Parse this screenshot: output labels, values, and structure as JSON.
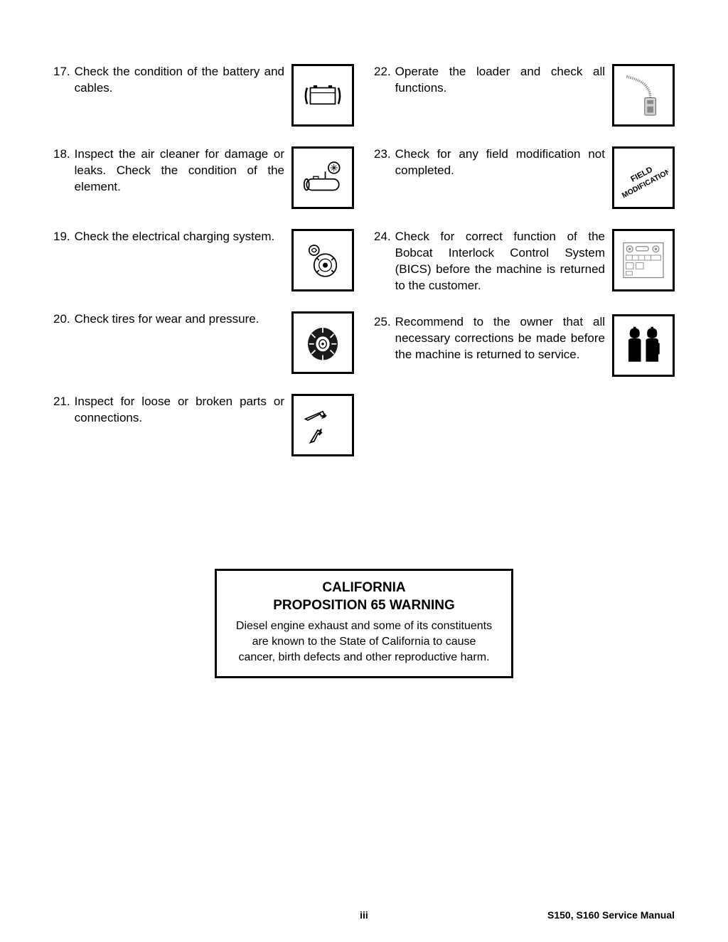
{
  "left_items": [
    {
      "num": "17.",
      "text": "Check the condition of the battery and cables.",
      "icon": "battery"
    },
    {
      "num": "18.",
      "text": "Inspect the air cleaner for damage or leaks. Check the condition of the element.",
      "icon": "aircleaner"
    },
    {
      "num": "19.",
      "text": "Check the electrical charging system.",
      "icon": "alternator"
    },
    {
      "num": "20.",
      "text": "Check tires for wear and pressure.",
      "icon": "tire"
    },
    {
      "num": "21.",
      "text": "Inspect for loose or broken parts or connections.",
      "icon": "broken"
    }
  ],
  "right_items": [
    {
      "num": "22.",
      "text": "Operate the loader and check all functions.",
      "icon": "joystick"
    },
    {
      "num": "23.",
      "text": "Check for any field modification not completed.",
      "icon": "fieldmod"
    },
    {
      "num": "24.",
      "text": "Check for correct function of the Bobcat Interlock Control System (BICS) before the machine is returned to the customer.",
      "icon": "panel"
    },
    {
      "num": "25.",
      "text": "Recommend to the owner that all necessary corrections be made before the machine is returned to service.",
      "icon": "people"
    }
  ],
  "warning": {
    "title1": "CALIFORNIA",
    "title2": "PROPOSITION 65 WARNING",
    "body": "Diesel engine exhaust and some of its constituents are known to the State of California to cause cancer, birth defects and other reproductive harm."
  },
  "footer": {
    "page": "iii",
    "manual": "S150, S160 Service Manual"
  },
  "icon_svgs": {
    "battery": "<svg viewBox='0 0 80 80' width='70' height='70'><rect x='20' y='28' width='40' height='26' fill='none' stroke='#000' stroke-width='2'/><rect x='25' y='24' width='6' height='4' fill='#000'/><rect x='49' y='24' width='6' height='4' fill='#000'/><line x1='20' y1='36' x2='60' y2='36' stroke='#000' stroke-width='1.5'/><path d='M15 28 Q10 40 15 54' fill='none' stroke='#000' stroke-width='3'/><path d='M65 28 Q70 40 65 54' fill='none' stroke='#000' stroke-width='3'/></svg>",
    "aircleaner": "<svg viewBox='0 0 80 80' width='70' height='70'><ellipse cx='58' cy='24' rx='9' ry='9' fill='none' stroke='#000' stroke-width='2'/><path d='M58 18 L58 30 M52 24 L64 24 M54 20 L62 28 M62 20 L54 28' stroke='#000' stroke-width='1'/><rect x='14' y='42' width='52' height='18' rx='9' fill='none' stroke='#000' stroke-width='2'/><ellipse cx='14' cy='51' rx='4' ry='9' fill='none' stroke='#000' stroke-width='2'/><rect x='25' y='38' width='8' height='4' fill='none' stroke='#000' stroke-width='1.5'/><line x1='44' y1='30' x2='44' y2='42' stroke='#000' stroke-width='2'/></svg>",
    "alternator": "<svg viewBox='0 0 80 80' width='70' height='70'><circle cx='26' cy='24' r='8' fill='none' stroke='#000' stroke-width='2'/><path d='M22 24 Q26 18 30 24 Q26 30 22 24' fill='none' stroke='#000' stroke-width='1.5'/><circle cx='44' cy='48' r='18' fill='none' stroke='#000' stroke-width='2'/><circle cx='44' cy='48' r='10' fill='none' stroke='#000' stroke-width='1.5'/><circle cx='44' cy='48' r='4' fill='#000'/><path d='M30 36 L34 40 M58 36 L54 40 M30 60 L34 56 M58 60 L54 56' stroke='#000' stroke-width='2'/></svg>",
    "tire": "<svg viewBox='0 0 80 80' width='70' height='70'><ellipse cx='40' cy='42' rx='24' ry='26' fill='#1a1a1a'/><ellipse cx='40' cy='42' rx='11' ry='12' fill='#fff'/><ellipse cx='40' cy='42' rx='6' ry='7' fill='none' stroke='#000' stroke-width='1.5'/><circle cx='40' cy='42' r='2' fill='#000'/><g stroke='#fff' stroke-width='2' fill='none'><path d='M22 26 L28 32'/><path d='M58 26 L52 32'/><path d='M18 42 L26 42'/><path d='M62 42 L54 42'/><path d='M22 58 L28 52'/><path d='M58 58 L52 52'/><path d='M40 16 L40 24'/><path d='M40 68 L40 60'/></g></svg>",
    "broken": "<svg viewBox='0 0 80 80' width='70' height='70'><path d='M12 30 L40 18 L44 26 L40 28 L42 24 L38 26 L36 22 L16 32 Z' fill='none' stroke='#000' stroke-width='2'/><path d='M40 26 L44 22 L42 28 L46 24' fill='none' stroke='#000' stroke-width='1.5'/><path d='M20 68 L32 48 L38 52 L34 56 L36 52 L32 54 L26 66 Z' fill='none' stroke='#000' stroke-width='2'/><path d='M34 50 L38 46 L36 52' fill='none' stroke='#000' stroke-width='1.5'/></svg>",
    "joystick": "<svg viewBox='0 0 80 80' width='70' height='70'><rect x='42' y='44' width='18' height='28' rx='2' fill='#d0d0d0' stroke='#555' stroke-width='1'/><rect x='46' y='48' width='10' height='6' fill='#888'/><rect x='46' y='58' width='10' height='10' fill='#888'/><path d='M51 44 Q51 20 20 12 Q14 10 12 10' fill='none' stroke='#888' stroke-width='4' stroke-dasharray='1.5 1.5'/></svg>",
    "fieldmod": "<svg viewBox='0 0 80 80' width='70' height='70'><text x='40' y='38' font-size='13' font-weight='bold' text-anchor='middle' transform='rotate(-28 40 40)' fill='#000'>FIELD</text><text x='40' y='54' font-size='12' font-weight='bold' text-anchor='middle' transform='rotate(-28 40 40)' fill='#000'>MODIFICATION</text></svg>",
    "panel": "<svg viewBox='0 0 80 80' width='70' height='70'><rect x='8' y='12' width='64' height='56' fill='none' stroke='#888' stroke-width='1.5'/><circle cx='18' cy='22' r='5' fill='none' stroke='#888' stroke-width='1.5'/><circle cx='18' cy='22' r='2' fill='#888'/><rect x='28' y='18' width='20' height='7' rx='3' fill='none' stroke='#888' stroke-width='1.5'/><circle cx='60' cy='22' r='5' fill='none' stroke='#888' stroke-width='1.5'/><circle cx='60' cy='22' r='2' fill='#888'/><rect x='12' y='32' width='56' height='8' fill='none' stroke='#888' stroke-width='1'/><line x1='22' y1='32' x2='22' y2='40' stroke='#888'/><line x1='32' y1='32' x2='32' y2='40' stroke='#888'/><line x1='42' y1='32' x2='42' y2='40' stroke='#888'/><line x1='52' y1='32' x2='52' y2='40' stroke='#888'/><rect x='12' y='44' width='12' height='10' fill='none' stroke='#888' stroke-width='1'/><rect x='28' y='44' width='12' height='10' fill='none' stroke='#888' stroke-width='1'/><rect x='12' y='58' width='10' height='6' fill='none' stroke='#888' stroke-width='1'/></svg>",
    "people": "<svg viewBox='0 0 80 80' width='70' height='70'><path d='M18 20 Q18 12 26 12 Q34 12 34 20 L34 22 Q34 28 26 28 Q18 28 18 22 Z' fill='#000'/><rect x='24' y='10' width='4' height='4' fill='#000'/><path d='M16 32 Q16 28 26 28 Q36 28 36 32 L36 66 L16 66 Z' fill='#000'/><path d='M46 20 Q46 12 54 12 Q62 12 62 20 L62 22 Q62 28 54 28 Q46 28 46 22 Z' fill='#000'/><rect x='52' y='10' width='4' height='4' fill='#000'/><path d='M44 32 Q44 28 54 28 Q64 28 64 32 L64 66 L44 66 Z' fill='#000'/><rect x='60' y='36' width='6' height='18' fill='#000'/></svg>"
  }
}
